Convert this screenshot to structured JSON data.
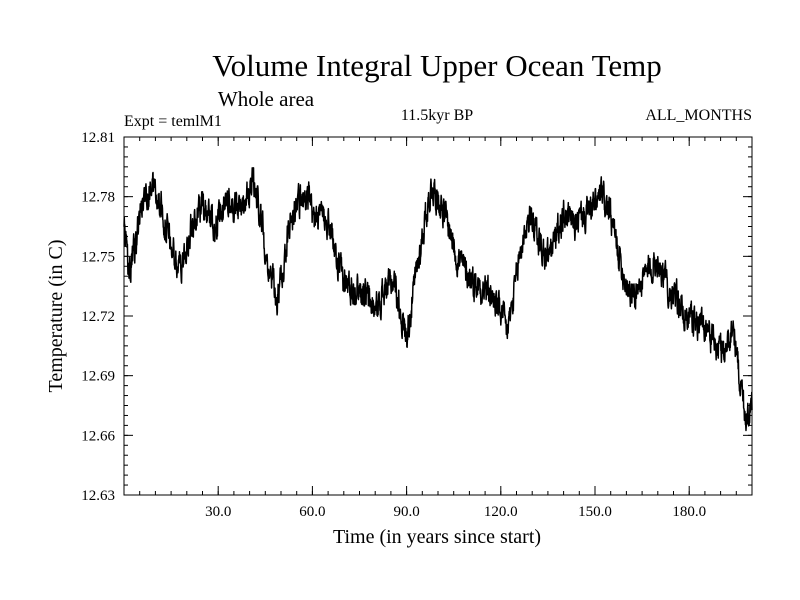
{
  "chart_data": {
    "type": "line",
    "title": "Volume Integral Upper Ocean Temp",
    "subtitle": "Whole area",
    "experiment_label": "Expt = temlM1",
    "period_label": "11.5kyr BP",
    "months_label": "ALL_MONTHS",
    "xlabel": "Time (in years since start)",
    "ylabel": "Temperature (in C)",
    "xlim": [
      0,
      200
    ],
    "ylim": [
      12.63,
      12.81
    ],
    "x_ticks": [
      30,
      60,
      90,
      120,
      150,
      180
    ],
    "x_tick_labels": [
      "30.0",
      "60.0",
      "90.0",
      "120.0",
      "150.0",
      "180.0"
    ],
    "x_minor_step": 5,
    "y_ticks": [
      12.63,
      12.66,
      12.69,
      12.72,
      12.75,
      12.78,
      12.81
    ],
    "y_tick_labels": [
      "12.63",
      "12.66",
      "12.69",
      "12.72",
      "12.75",
      "12.78",
      "12.81"
    ],
    "y_minor_step": 0.005,
    "grid": false,
    "series": [
      {
        "name": "temperature",
        "sampling": "monthly",
        "envelope_note": "smoothed mean trace (x in years, y in C); plotted with month-to-month variability of about +/-0.008 C",
        "x": [
          0,
          1,
          2,
          4,
          5,
          7,
          9,
          11,
          13,
          15,
          17,
          19,
          21,
          23,
          25,
          27,
          29,
          31,
          33,
          35,
          37,
          39,
          41,
          43,
          45,
          47,
          49,
          51,
          53,
          55,
          57,
          59,
          60,
          62,
          64,
          66,
          68,
          70,
          72,
          74,
          76,
          78,
          80,
          82,
          84,
          86,
          88,
          90,
          92,
          94,
          96,
          98,
          100,
          102,
          104,
          106,
          108,
          110,
          112,
          114,
          116,
          118,
          120,
          122,
          124,
          126,
          128,
          130,
          132,
          134,
          136,
          138,
          140,
          142,
          144,
          146,
          148,
          150,
          152,
          154,
          156,
          158,
          160,
          162,
          164,
          166,
          168,
          170,
          172,
          174,
          176,
          178,
          180,
          182,
          184,
          186,
          188,
          190,
          192,
          194,
          196,
          198,
          200
        ],
        "y": [
          12.765,
          12.748,
          12.742,
          12.758,
          12.772,
          12.782,
          12.786,
          12.778,
          12.768,
          12.755,
          12.745,
          12.748,
          12.762,
          12.77,
          12.776,
          12.772,
          12.765,
          12.77,
          12.78,
          12.772,
          12.775,
          12.782,
          12.788,
          12.775,
          12.755,
          12.738,
          12.728,
          12.748,
          12.768,
          12.776,
          12.78,
          12.778,
          12.77,
          12.767,
          12.773,
          12.762,
          12.745,
          12.738,
          12.734,
          12.735,
          12.733,
          12.728,
          12.722,
          12.73,
          12.735,
          12.738,
          12.722,
          12.71,
          12.73,
          12.75,
          12.77,
          12.785,
          12.78,
          12.772,
          12.762,
          12.75,
          12.745,
          12.74,
          12.736,
          12.735,
          12.732,
          12.728,
          12.722,
          12.712,
          12.728,
          12.75,
          12.766,
          12.77,
          12.758,
          12.75,
          12.752,
          12.763,
          12.77,
          12.768,
          12.766,
          12.77,
          12.772,
          12.776,
          12.78,
          12.775,
          12.762,
          12.748,
          12.737,
          12.73,
          12.734,
          12.74,
          12.746,
          12.748,
          12.74,
          12.732,
          12.728,
          12.722,
          12.72,
          12.716,
          12.718,
          12.713,
          12.706,
          12.702,
          12.705,
          12.716,
          12.69,
          12.67,
          12.675
        ]
      }
    ]
  }
}
